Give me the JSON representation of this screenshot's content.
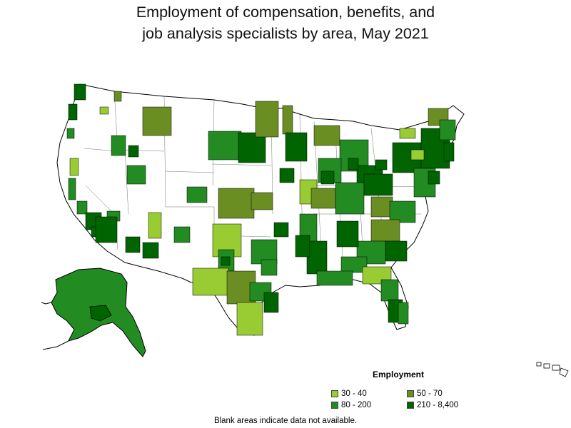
{
  "title_line1": "Employment of compensation, benefits, and",
  "title_line2": "job analysis specialists by area, May 2021",
  "legend": {
    "title": "Employment",
    "items": [
      {
        "label": "30 - 40",
        "color": "#99cc33"
      },
      {
        "label": "50 - 70",
        "color": "#6b8e23"
      },
      {
        "label": "80 - 200",
        "color": "#228b22"
      },
      {
        "label": "210 - 8,400",
        "color": "#006400"
      }
    ]
  },
  "footnote": "Blank areas indicate data not available."
}
